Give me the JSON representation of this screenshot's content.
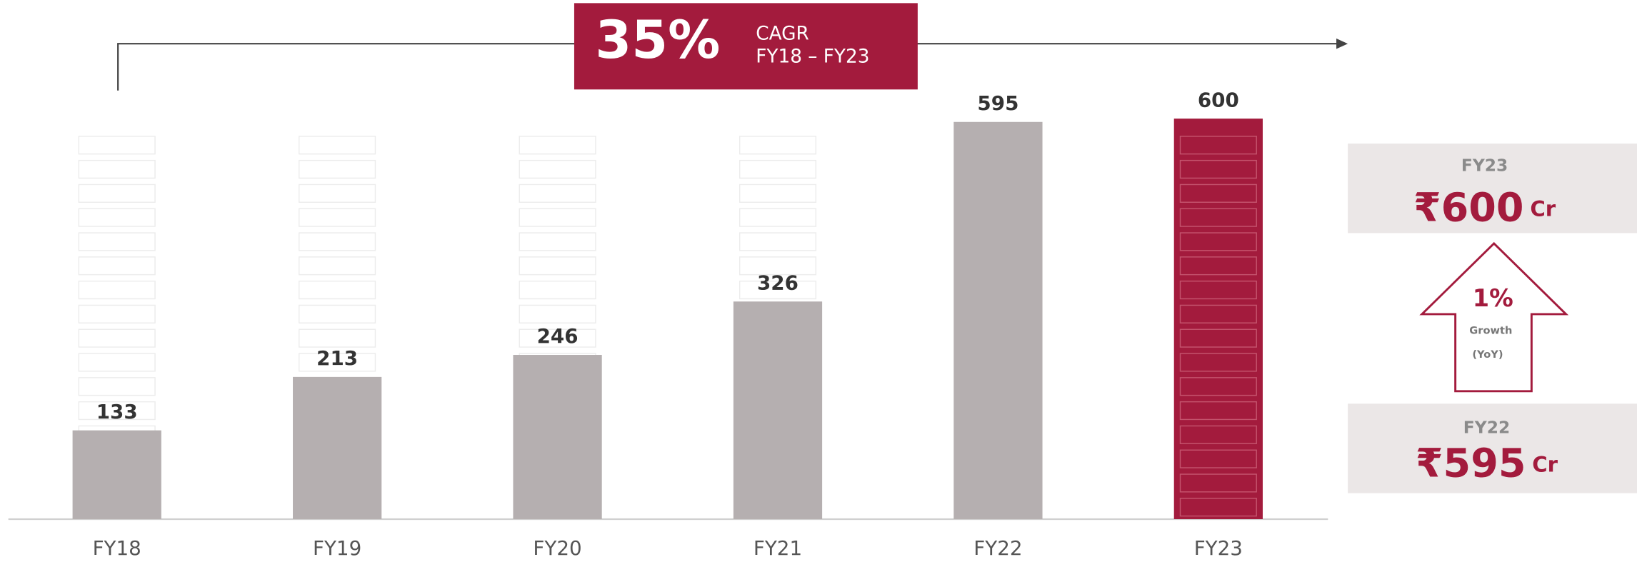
{
  "chart_data": {
    "type": "bar",
    "categories": [
      "FY18",
      "FY19",
      "FY20",
      "FY21",
      "FY22",
      "FY23"
    ],
    "values": [
      133,
      213,
      246,
      326,
      595,
      600
    ],
    "colors": [
      "#b5afb0",
      "#b5afb0",
      "#b5afb0",
      "#b5afb0",
      "#b5afb0",
      "#a31b3d"
    ],
    "ylim": [
      0,
      600
    ],
    "cagr": {
      "value": "35%",
      "label": "CAGR",
      "period": "FY18 – FY23"
    },
    "side": {
      "current": {
        "year": "FY23",
        "amount": "₹600",
        "unit": "Cr"
      },
      "growth": {
        "value": "1%",
        "label": "Growth",
        "basis": "(YoY)"
      },
      "previous": {
        "year": "FY22",
        "amount": "₹595",
        "unit": "Cr"
      }
    }
  }
}
